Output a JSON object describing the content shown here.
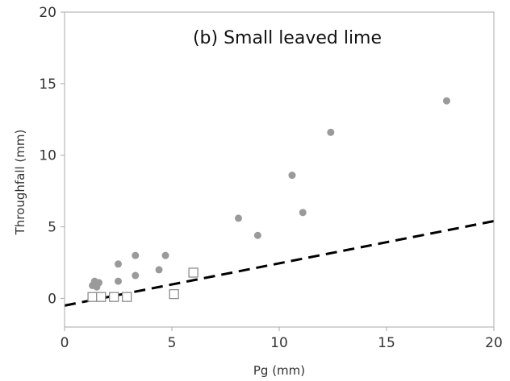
{
  "chart_data": {
    "type": "scatter",
    "title": "(b) Small leaved lime",
    "xlabel": "Pg (mm)",
    "ylabel": "Throughfall (mm)",
    "xlim": [
      0,
      20
    ],
    "ylim": [
      -2,
      20
    ],
    "xticks": [
      "0",
      "5",
      "10",
      "15",
      "20"
    ],
    "yticks": [
      "0",
      "5",
      "10",
      "15",
      "20"
    ],
    "grid": false,
    "colors": {
      "filled": "#9a9a9a",
      "open_stroke": "#8c8c8c",
      "line": "#000000",
      "frame": "#aaaaaa"
    },
    "series": [
      {
        "marker": "filled-circle",
        "points": [
          [
            1.3,
            0.9
          ],
          [
            1.4,
            1.2
          ],
          [
            1.5,
            0.8
          ],
          [
            1.6,
            1.1
          ],
          [
            2.5,
            1.2
          ],
          [
            2.5,
            2.4
          ],
          [
            3.3,
            1.6
          ],
          [
            3.3,
            3.0
          ],
          [
            4.4,
            2.0
          ],
          [
            4.7,
            3.0
          ],
          [
            8.1,
            5.6
          ],
          [
            9.0,
            4.4
          ],
          [
            10.6,
            8.6
          ],
          [
            11.1,
            6.0
          ],
          [
            12.4,
            11.6
          ],
          [
            17.8,
            13.8
          ]
        ]
      },
      {
        "marker": "open-square",
        "points": [
          [
            1.3,
            0.1
          ],
          [
            1.7,
            0.1
          ],
          [
            2.3,
            0.1
          ],
          [
            2.9,
            0.1
          ],
          [
            5.1,
            0.3
          ],
          [
            6.0,
            1.8
          ]
        ]
      },
      {
        "marker": "dashed-line",
        "points": [
          [
            0,
            -0.5
          ],
          [
            20,
            5.4
          ]
        ]
      }
    ]
  }
}
